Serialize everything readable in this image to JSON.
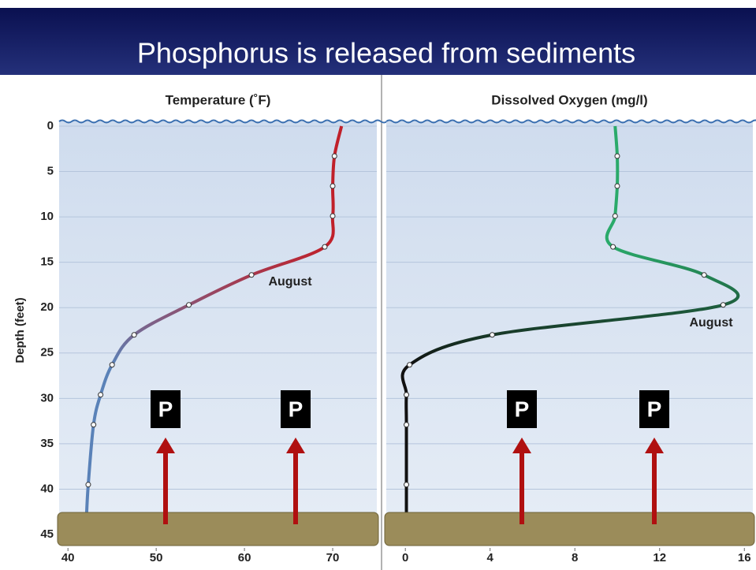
{
  "title": "Phosphorus is released from sediments",
  "chart_data": [
    {
      "type": "line",
      "title": "Temperature (˚F)",
      "y_label": "Depth (feet)",
      "x": [
        71.0,
        70.2,
        70,
        70,
        69.1,
        60.8,
        53.7,
        47.5,
        45,
        43.7,
        42.9,
        42.3,
        42.1
      ],
      "values": [
        0,
        3.3,
        6.6,
        9.9,
        13.3,
        16.4,
        19.7,
        23,
        26.3,
        29.6,
        32.9,
        39.5,
        43
      ],
      "color_top": "#c0202a",
      "color_bottom": "#5a82b8",
      "xlim": [
        39,
        75
      ],
      "xticks": [
        40,
        50,
        60,
        70
      ],
      "ylim": [
        0,
        45
      ],
      "yticks": [
        0,
        5,
        10,
        15,
        20,
        25,
        30,
        35,
        40,
        45
      ],
      "y_inverted": true,
      "grid": true,
      "annotations": [
        "August",
        "P",
        "P"
      ]
    },
    {
      "type": "line",
      "title": "Dissolved Oxygen (mg/l)",
      "x": [
        9.9,
        10.0,
        10.0,
        9.9,
        9.8,
        14.1,
        15.0,
        4.1,
        0.2,
        0.05,
        0.05,
        0.05,
        0.05
      ],
      "values": [
        0,
        3.3,
        6.6,
        9.9,
        13.3,
        16.4,
        19.7,
        23,
        26.3,
        29.6,
        32.9,
        39.5,
        43
      ],
      "color_top": "#2aaa6a",
      "color_bottom": "#111111",
      "xlim": [
        -0.9,
        16.4
      ],
      "xticks": [
        0,
        4,
        8,
        12,
        16
      ],
      "ylim": [
        0,
        45
      ],
      "yticks": [
        0,
        5,
        10,
        15,
        20,
        25,
        30,
        35,
        40,
        45
      ],
      "y_inverted": true,
      "grid": true,
      "annotations": [
        "August",
        "P",
        "P"
      ]
    }
  ]
}
